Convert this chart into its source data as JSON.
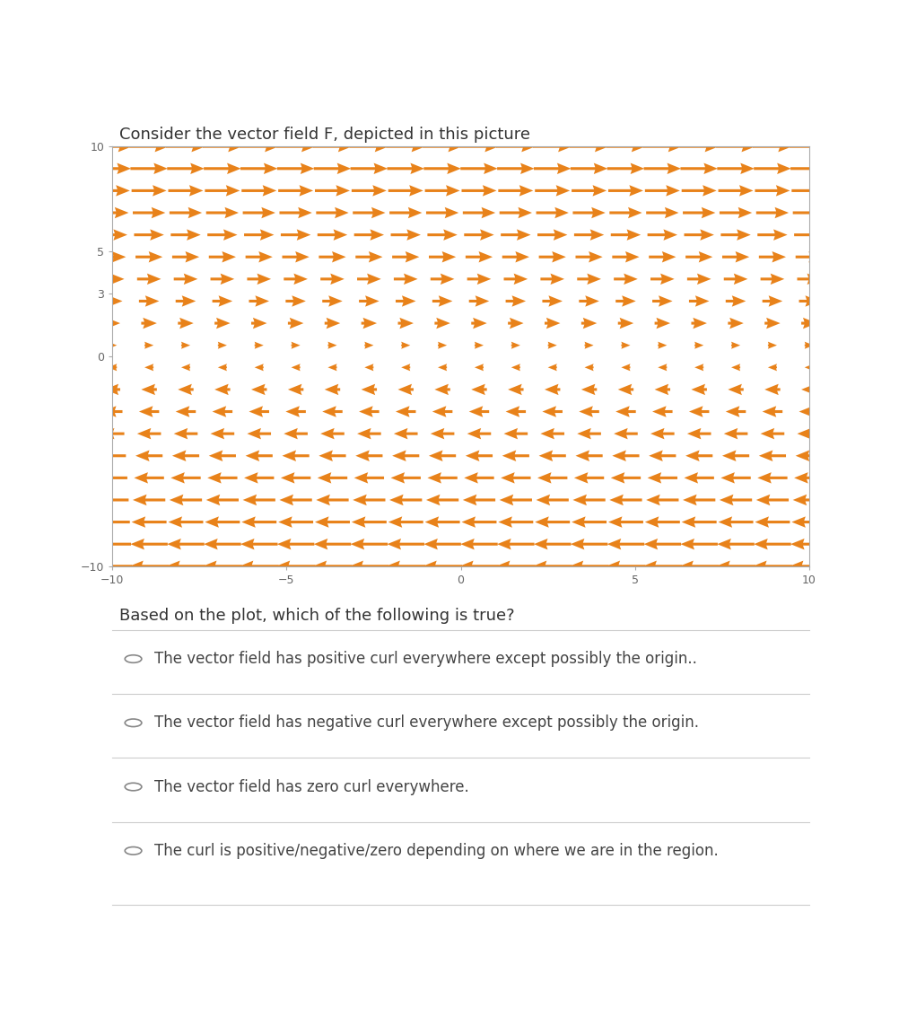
{
  "title": "Consider the vector field F, depicted in this picture",
  "question": "Based on the plot, which of the following is true?",
  "options": [
    "The vector field has positive curl everywhere except possibly the origin..",
    "The vector field has negative curl everywhere except possibly the origin.",
    "The vector field has zero curl everywhere.",
    "The curl is positive/negative/zero depending on where we are in the region."
  ],
  "arrow_color": "#E8821A",
  "background_color": "#ffffff",
  "plot_background": "#ffffff",
  "xlim": [
    -10,
    10
  ],
  "ylim": [
    -10,
    10
  ],
  "xticks": [
    -10,
    -5,
    0,
    5,
    10
  ],
  "yticks": [
    -10,
    0,
    3,
    5,
    10
  ],
  "grid_density": 20,
  "title_fontsize": 13,
  "question_fontsize": 13,
  "option_fontsize": 12,
  "figsize": [
    10.02,
    11.33
  ],
  "dpi": 100
}
